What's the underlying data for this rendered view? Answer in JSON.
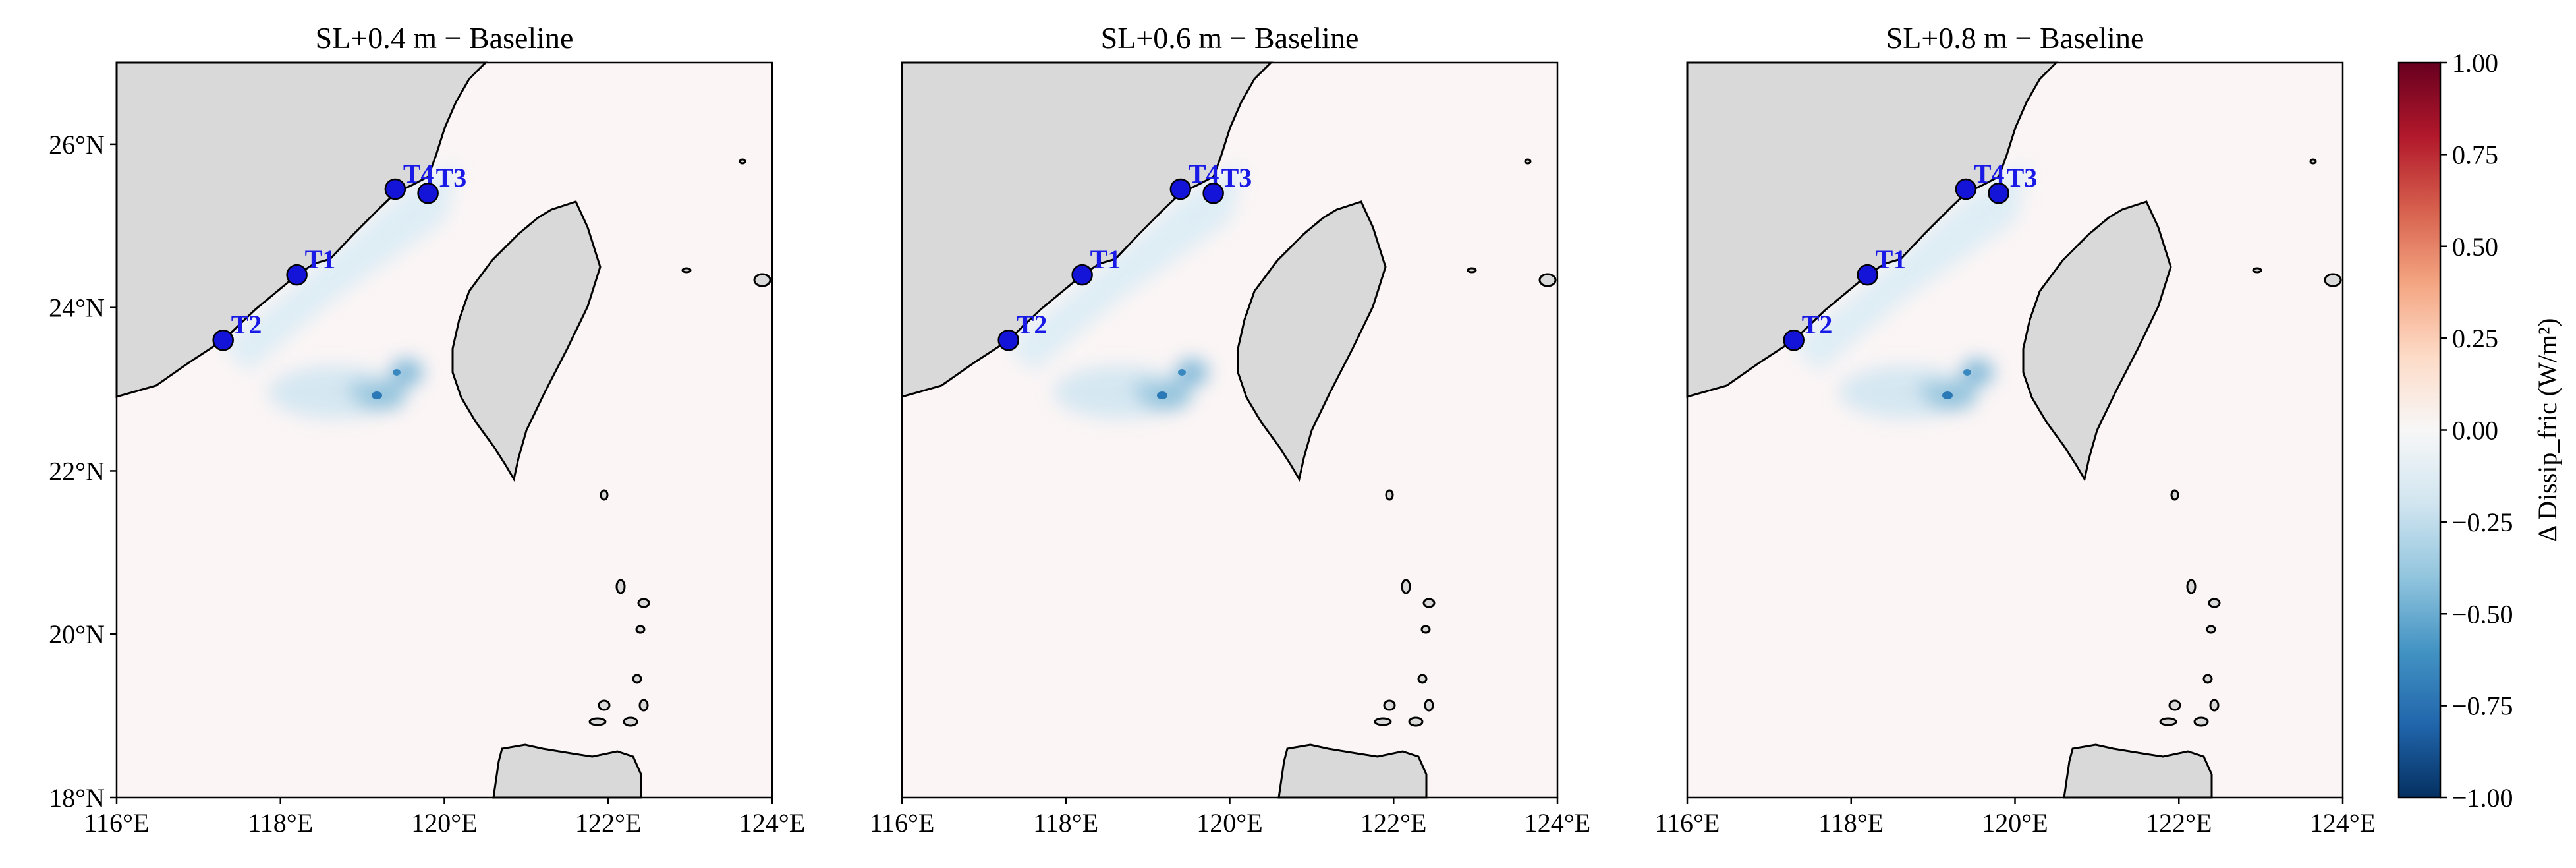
{
  "panels": [
    {
      "title": "SL+0.4 m − Baseline"
    },
    {
      "title": "SL+0.6 m − Baseline"
    },
    {
      "title": "SL+0.8 m − Baseline"
    }
  ],
  "xlim": [
    116,
    124
  ],
  "ylim": [
    18,
    27
  ],
  "xticks": [
    {
      "value": 116,
      "label": "116°E"
    },
    {
      "value": 118,
      "label": "118°E"
    },
    {
      "value": 120,
      "label": "120°E"
    },
    {
      "value": 122,
      "label": "122°E"
    },
    {
      "value": 124,
      "label": "124°E"
    }
  ],
  "yticks": [
    {
      "value": 18,
      "label": "18°N"
    },
    {
      "value": 20,
      "label": "20°N"
    },
    {
      "value": 22,
      "label": "22°N"
    },
    {
      "value": 24,
      "label": "24°N"
    },
    {
      "value": 26,
      "label": "26°N"
    }
  ],
  "stations": [
    {
      "name": "T1",
      "lon": 118.2,
      "lat": 24.4
    },
    {
      "name": "T2",
      "lon": 117.3,
      "lat": 23.6
    },
    {
      "name": "T3",
      "lon": 119.8,
      "lat": 25.4
    },
    {
      "name": "T4",
      "lon": 119.4,
      "lat": 25.45
    }
  ],
  "colorbar": {
    "label": "Δ Dissip_fric (W/m²)",
    "lim": [
      -1,
      1
    ],
    "ticks": [
      {
        "value": -1,
        "label": "−1.00"
      },
      {
        "value": -0.75,
        "label": "−0.75"
      },
      {
        "value": -0.5,
        "label": "−0.50"
      },
      {
        "value": -0.25,
        "label": "−0.25"
      },
      {
        "value": 0,
        "label": "0.00"
      },
      {
        "value": 0.25,
        "label": "0.25"
      },
      {
        "value": 0.5,
        "label": "0.50"
      },
      {
        "value": 0.75,
        "label": "0.75"
      },
      {
        "value": 1,
        "label": "1.00"
      }
    ],
    "colors": [
      "#053061",
      "#2166ac",
      "#4393c3",
      "#92c5de",
      "#d1e5f0",
      "#f7f7f7",
      "#fddbc7",
      "#f4a582",
      "#d6604d",
      "#b2182b",
      "#67001f"
    ]
  }
}
